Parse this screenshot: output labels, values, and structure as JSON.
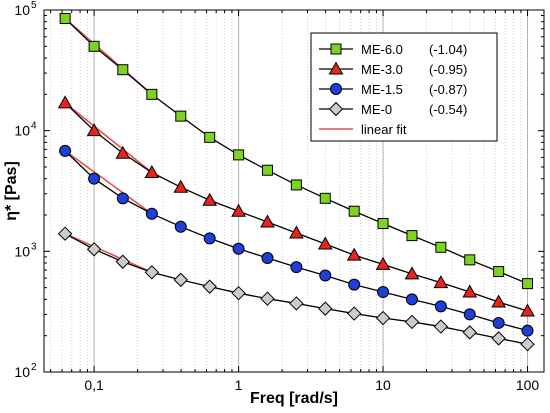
{
  "chart_data": {
    "type": "scatter",
    "xlabel": "Freq [rad/s]",
    "ylabel": "η* [Pas]",
    "x_scale": "log",
    "y_scale": "log",
    "xlim": [
      0.045,
      130
    ],
    "ylim": [
      100,
      100000
    ],
    "x_ticks": [
      {
        "value": 0.1,
        "label": "0,1"
      },
      {
        "value": 1,
        "label": "1"
      },
      {
        "value": 10,
        "label": "10"
      },
      {
        "value": 100,
        "label": "100"
      }
    ],
    "y_ticks": [
      {
        "value": 100,
        "label": "10",
        "exp": "2"
      },
      {
        "value": 1000,
        "label": "10",
        "exp": "3"
      },
      {
        "value": 10000,
        "label": "10",
        "exp": "4"
      },
      {
        "value": 100000,
        "label": "10",
        "exp": "5"
      }
    ],
    "grid": "vertical minor and major",
    "legend_position": "top-right",
    "x": [
      0.063,
      0.1,
      0.158,
      0.251,
      0.398,
      0.631,
      1,
      1.585,
      2.512,
      3.981,
      6.31,
      10,
      15.85,
      25.12,
      39.81,
      63.1,
      100
    ],
    "series": [
      {
        "name": "ME-6.0",
        "slope_label": "(-1.04)",
        "marker": "square",
        "color": "#7ed321",
        "values": [
          85000,
          50000,
          32000,
          20000,
          13200,
          8800,
          6300,
          4700,
          3550,
          2750,
          2150,
          1700,
          1350,
          1080,
          850,
          680,
          540
        ],
        "fit": {
          "x": [
            0.063,
            0.251
          ],
          "y": [
            85000,
            20000
          ]
        }
      },
      {
        "name": "ME-3.0",
        "slope_label": "(-0.95)",
        "marker": "triangle",
        "color": "#e8231c",
        "values": [
          17000,
          10000,
          6500,
          4500,
          3400,
          2650,
          2150,
          1750,
          1420,
          1150,
          930,
          780,
          650,
          550,
          460,
          380,
          320
        ],
        "fit": {
          "x": [
            0.063,
            0.251
          ],
          "y": [
            17000,
            4500
          ]
        }
      },
      {
        "name": "ME-1.5",
        "slope_label": "(-0.87)",
        "marker": "circle",
        "color": "#1f3fd6",
        "values": [
          6800,
          4000,
          2750,
          2050,
          1600,
          1280,
          1050,
          880,
          740,
          630,
          530,
          460,
          400,
          350,
          300,
          255,
          220
        ],
        "fit": {
          "x": [
            0.063,
            0.251
          ],
          "y": [
            6800,
            2050
          ]
        }
      },
      {
        "name": "ME-0",
        "slope_label": "(-0.54)",
        "marker": "diamond",
        "color": "#cccccc",
        "values": [
          1400,
          1040,
          820,
          670,
          580,
          510,
          450,
          405,
          370,
          335,
          305,
          280,
          260,
          238,
          213,
          190,
          170
        ],
        "fit": {
          "x": [
            0.063,
            0.251
          ],
          "y": [
            1400,
            670
          ]
        }
      }
    ],
    "legend_fit_label": "linear fit",
    "fit_color": "#e05050"
  }
}
